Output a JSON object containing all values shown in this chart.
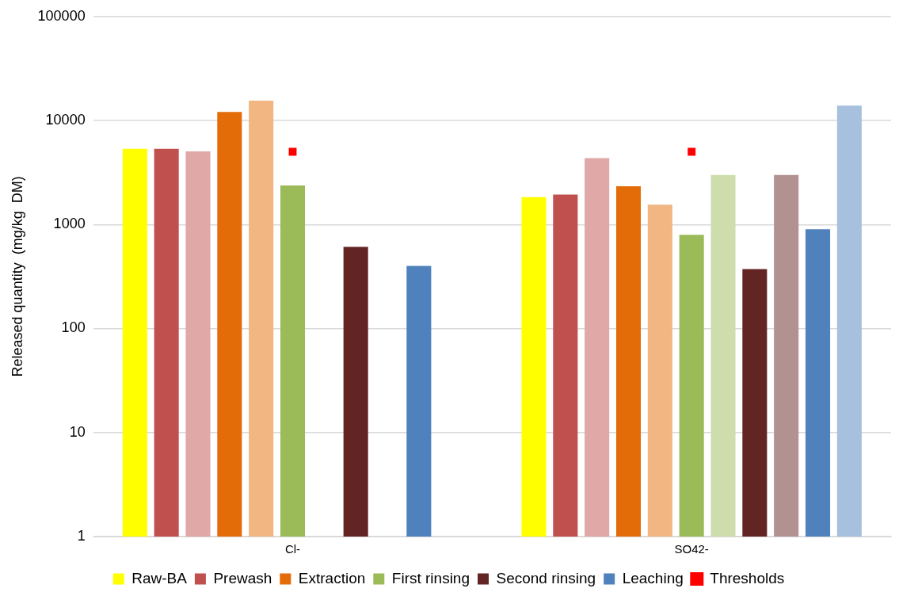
{
  "chart_data": {
    "type": "bar",
    "ylabel": "Released quantity  (mg/kg  DM)",
    "categories": [
      "Cl-",
      "SO42-"
    ],
    "series": [
      {
        "name": "Raw-BA",
        "color": "#ffff00",
        "values": [
          5350,
          1830
        ]
      },
      {
        "name": "Prewash",
        "color": "#c0504d",
        "values": [
          5350,
          1940
        ]
      },
      {
        "color": "#e0a8a6",
        "values": [
          5050,
          4350
        ]
      },
      {
        "name": "Extraction",
        "color": "#e36c09",
        "values": [
          12100,
          2330
        ]
      },
      {
        "color": "#f1b682",
        "values": [
          15500,
          1550
        ]
      },
      {
        "name": "First rinsing",
        "color": "#9bbb59",
        "values": [
          2370,
          795
        ]
      },
      {
        "color": "#cdddac",
        "values": [
          null,
          2990
        ]
      },
      {
        "name": "Second rinsing",
        "color": "#632523",
        "values": [
          610,
          373
        ]
      },
      {
        "color": "#b19291",
        "values": [
          null,
          2990
        ]
      },
      {
        "name": "Leaching",
        "color": "#4f81bd",
        "values": [
          400,
          900
        ]
      },
      {
        "color": "#a7c0de",
        "values": [
          null,
          13900
        ]
      },
      {
        "name": "Thresholds",
        "type": "scatter",
        "color": "#ff0000",
        "x": [
          "Cl-",
          "SO42-"
        ],
        "values": [
          5000,
          5000
        ]
      }
    ],
    "log": true,
    "ylim": [
      1,
      100000
    ],
    "yticks": [
      1,
      10,
      100,
      1000,
      10000,
      100000
    ],
    "grid": "y",
    "legend": "bottom",
    "marker": "square"
  }
}
